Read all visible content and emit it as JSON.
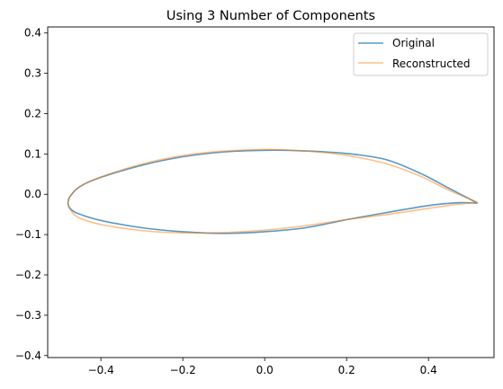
{
  "chart_data": {
    "type": "line",
    "title": "Using 3 Number of Components",
    "xlabel": "",
    "ylabel": "",
    "xlim": [
      -0.53,
      0.56
    ],
    "ylim": [
      -0.405,
      0.415
    ],
    "x_ticks": [
      -0.4,
      -0.2,
      0.0,
      0.2,
      0.4
    ],
    "x_tick_labels": [
      "−0.4",
      "−0.2",
      "0.0",
      "0.2",
      "0.4"
    ],
    "y_ticks": [
      -0.4,
      -0.3,
      -0.2,
      -0.1,
      0.0,
      0.1,
      0.2,
      0.3,
      0.4
    ],
    "y_tick_labels": [
      "−0.4",
      "−0.3",
      "−0.2",
      "−0.1",
      "0.0",
      "0.1",
      "0.2",
      "0.3",
      "0.4"
    ],
    "grid": false,
    "legend_position": "upper-right",
    "series": [
      {
        "name": "Original",
        "color": "#1f77b4",
        "opacity": 0.75,
        "x": [
          0.52,
          0.45,
          0.38,
          0.3,
          0.22,
          0.15,
          0.05,
          0.0,
          -0.1,
          -0.2,
          -0.3,
          -0.4,
          -0.45,
          -0.475,
          -0.48,
          -0.47,
          -0.45,
          -0.4,
          -0.3,
          -0.2,
          -0.1,
          0.0,
          0.1,
          0.2,
          0.3,
          0.4,
          0.47,
          0.52
        ],
        "y": [
          -0.022,
          0.015,
          0.052,
          0.085,
          0.099,
          0.105,
          0.109,
          0.109,
          0.105,
          0.093,
          0.072,
          0.042,
          0.02,
          -0.005,
          -0.025,
          -0.04,
          -0.05,
          -0.065,
          -0.083,
          -0.093,
          -0.097,
          -0.093,
          -0.083,
          -0.063,
          -0.045,
          -0.028,
          -0.021,
          -0.022
        ]
      },
      {
        "name": "Reconstructed",
        "color": "#ff7f0e",
        "opacity": 0.5,
        "x": [
          0.52,
          0.45,
          0.38,
          0.3,
          0.22,
          0.15,
          0.05,
          0.0,
          -0.1,
          -0.2,
          -0.3,
          -0.4,
          -0.45,
          -0.475,
          -0.48,
          -0.47,
          -0.45,
          -0.4,
          -0.3,
          -0.2,
          -0.1,
          0.0,
          0.1,
          0.2,
          0.3,
          0.4,
          0.47,
          0.52
        ],
        "y": [
          -0.02,
          0.01,
          0.045,
          0.075,
          0.093,
          0.103,
          0.11,
          0.111,
          0.107,
          0.096,
          0.075,
          0.043,
          0.02,
          -0.005,
          -0.025,
          -0.045,
          -0.06,
          -0.075,
          -0.09,
          -0.096,
          -0.095,
          -0.089,
          -0.078,
          -0.063,
          -0.05,
          -0.035,
          -0.025,
          -0.02
        ]
      }
    ]
  }
}
